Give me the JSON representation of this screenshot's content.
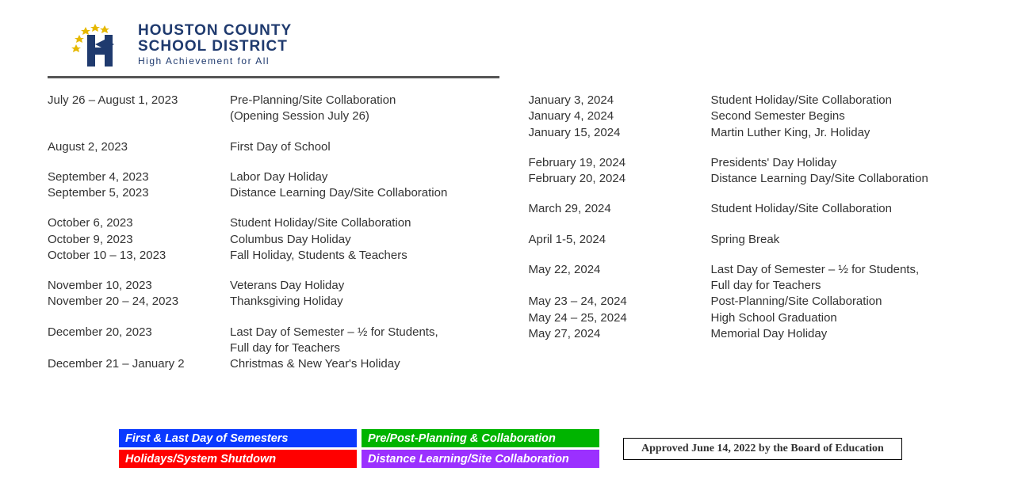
{
  "header": {
    "line1": "HOUSTON COUNTY",
    "line2": "SCHOOL DISTRICT",
    "tagline": "High Achievement for All",
    "logo_colors": {
      "h": "#1f3a6e",
      "star": "#e6b800"
    }
  },
  "left_groups": [
    [
      {
        "date": "July 26 – August 1, 2023",
        "desc": "Pre-Planning/Site Collaboration\n(Opening Session July 26)"
      }
    ],
    [
      {
        "date": "August 2, 2023",
        "desc": "First Day of School"
      }
    ],
    [
      {
        "date": "September 4, 2023",
        "desc": "Labor Day Holiday"
      },
      {
        "date": "September 5, 2023",
        "desc": "Distance Learning Day/Site Collaboration"
      }
    ],
    [
      {
        "date": "October 6, 2023",
        "desc": "Student Holiday/Site Collaboration"
      },
      {
        "date": "October 9, 2023",
        "desc": "Columbus Day Holiday"
      },
      {
        "date": "October 10 – 13, 2023",
        "desc": "Fall Holiday, Students & Teachers"
      }
    ],
    [
      {
        "date": "November 10, 2023",
        "desc": "Veterans Day Holiday"
      },
      {
        "date": "November 20 – 24, 2023",
        "desc": "Thanksgiving Holiday"
      }
    ],
    [
      {
        "date": "December 20, 2023",
        "desc": "Last Day of Semester – ½ for Students,\nFull day for Teachers"
      },
      {
        "date": "December 21 – January 2",
        "desc": "Christmas & New Year's Holiday"
      }
    ]
  ],
  "right_groups": [
    [
      {
        "date": "January 3, 2024",
        "desc": "Student Holiday/Site Collaboration"
      },
      {
        "date": "January 4, 2024",
        "desc": "Second Semester Begins"
      },
      {
        "date": "January 15, 2024",
        "desc": "Martin Luther King, Jr. Holiday"
      }
    ],
    [
      {
        "date": "February 19, 2024",
        "desc": "Presidents' Day Holiday"
      },
      {
        "date": "February 20, 2024",
        "desc": "Distance Learning Day/Site Collaboration"
      }
    ],
    [
      {
        "date": "March 29, 2024",
        "desc": "Student Holiday/Site Collaboration"
      }
    ],
    [
      {
        "date": "April 1-5, 2024",
        "desc": "Spring Break"
      }
    ],
    [
      {
        "date": "May 22, 2024",
        "desc": "Last Day of Semester – ½ for Students,\nFull day for Teachers"
      },
      {
        "date": "May 23 – 24, 2024",
        "desc": "Post-Planning/Site Collaboration"
      },
      {
        "date": "May 24 – 25, 2024",
        "desc": "High School Graduation"
      },
      {
        "date": "May 27, 2024",
        "desc": "Memorial Day Holiday"
      }
    ]
  ],
  "legend": [
    {
      "label": "First & Last Day of Semesters",
      "color": "#0a39ff"
    },
    {
      "label": "Pre/Post-Planning & Collaboration",
      "color": "#00b400"
    },
    {
      "label": "Holidays/System Shutdown",
      "color": "#ff0000"
    },
    {
      "label": "Distance Learning/Site Collaboration",
      "color": "#9b30ff"
    }
  ],
  "approved": "Approved June 14, 2022 by the Board of Education"
}
